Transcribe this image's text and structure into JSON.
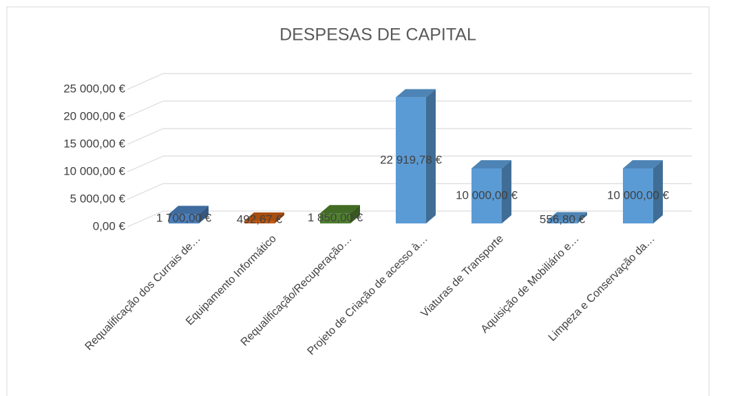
{
  "chart_data": {
    "type": "bar3d",
    "title": "DESPESAS DE CAPITAL",
    "categories": [
      "Requalificação dos Currais de…",
      "Equipamento Informático",
      "Requalificação/Recuperação…",
      "Projeto de Criação de acesso à…",
      "Viaturas de Transporte",
      "Aquisição de Mobiliário e…",
      "Limpeza e Conservação da…"
    ],
    "values": [
      1700,
      492.67,
      1850,
      22919.78,
      10000,
      556.8,
      10000
    ],
    "value_labels": [
      "1 700,00 €",
      "492,67 €",
      "1 850,00 €",
      "22 919,78 €",
      "10 000,00 €",
      "556,80 €",
      "10 000,00 €"
    ],
    "colors": [
      "#4a7ebb",
      "#c55a11",
      "#4e7f2c",
      "#5b9bd5",
      "#5b9bd5",
      "#5b9bd5",
      "#5b9bd5"
    ],
    "ylim": [
      0,
      25000
    ],
    "yticks": [
      {
        "value": 0,
        "label": "0,00 €"
      },
      {
        "value": 5000,
        "label": "5 000,00 €"
      },
      {
        "value": 10000,
        "label": "10 000,00 €"
      },
      {
        "value": 15000,
        "label": "15 000,00 €"
      },
      {
        "value": 20000,
        "label": "20 000,00 €"
      },
      {
        "value": 25000,
        "label": "25 000,00 €"
      }
    ],
    "grid": true
  }
}
